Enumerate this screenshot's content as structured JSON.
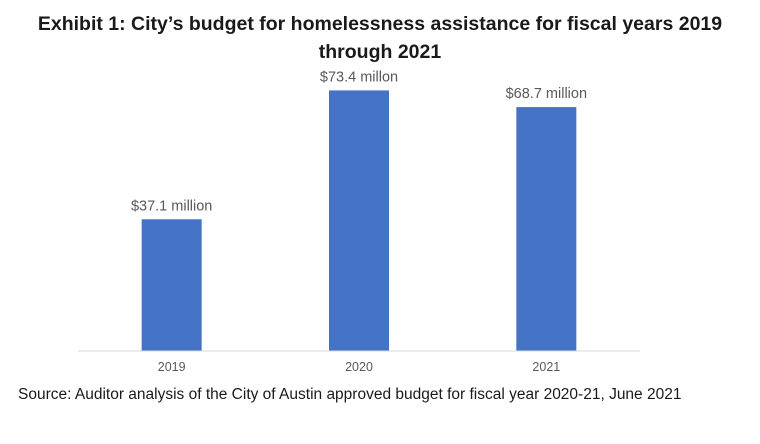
{
  "title": "Exhibit 1: City’s budget for homelessness assistance for fiscal years 2019 through 2021",
  "source": "Source: Auditor analysis of the City of Austin approved budget for fiscal year 2020-21, June 2021",
  "chart_data": {
    "type": "bar",
    "title": "Exhibit 1: City’s budget for homelessness assistance for fiscal years 2019 through 2021",
    "xlabel": "",
    "ylabel": "",
    "categories": [
      "2019",
      "2020",
      "2021"
    ],
    "values": [
      37.1,
      73.4,
      68.7
    ],
    "data_labels": [
      "$37.1 million",
      "$73.4 millon",
      "$68.7 million"
    ],
    "ylim": [
      0,
      80
    ],
    "grid": false,
    "legend": "none",
    "bar_color": "#4472C4",
    "axis_color": "#D9D9D9"
  }
}
